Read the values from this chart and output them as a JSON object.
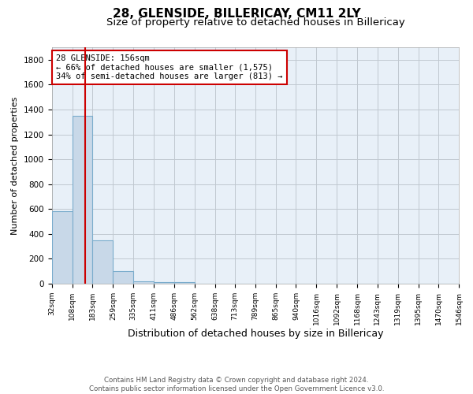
{
  "title": "28, GLENSIDE, BILLERICAY, CM11 2LY",
  "subtitle": "Size of property relative to detached houses in Billericay",
  "xlabel": "Distribution of detached houses by size in Billericay",
  "ylabel": "Number of detached properties",
  "bins": [
    32,
    108,
    183,
    259,
    335,
    411,
    486,
    562,
    638,
    713,
    789,
    865,
    940,
    1016,
    1092,
    1168,
    1243,
    1319,
    1395,
    1470,
    1546
  ],
  "bar_heights": [
    580,
    1350,
    350,
    100,
    20,
    15,
    15,
    0,
    0,
    0,
    0,
    0,
    0,
    0,
    0,
    0,
    0,
    0,
    0,
    0
  ],
  "bar_color": "#c8d8e8",
  "bar_edgecolor": "#7aaccc",
  "bar_linewidth": 0.8,
  "grid_color": "#c0c8d0",
  "background_color": "#e8f0f8",
  "vline_x": 156,
  "vline_color": "#cc0000",
  "vline_linewidth": 1.5,
  "ylim": [
    0,
    1900
  ],
  "yticks": [
    0,
    200,
    400,
    600,
    800,
    1000,
    1200,
    1400,
    1600,
    1800
  ],
  "annotation_text": "28 GLENSIDE: 156sqm\n← 66% of detached houses are smaller (1,575)\n34% of semi-detached houses are larger (813) →",
  "annotation_boxcolor": "white",
  "annotation_edgecolor": "#cc0000",
  "footnote": "Contains HM Land Registry data © Crown copyright and database right 2024.\nContains public sector information licensed under the Open Government Licence v3.0.",
  "title_fontsize": 11,
  "subtitle_fontsize": 9.5,
  "xlabel_fontsize": 9,
  "ylabel_fontsize": 8,
  "tick_fontsize": 6.5,
  "annotation_fontsize": 7.5,
  "footnote_fontsize": 6.2
}
